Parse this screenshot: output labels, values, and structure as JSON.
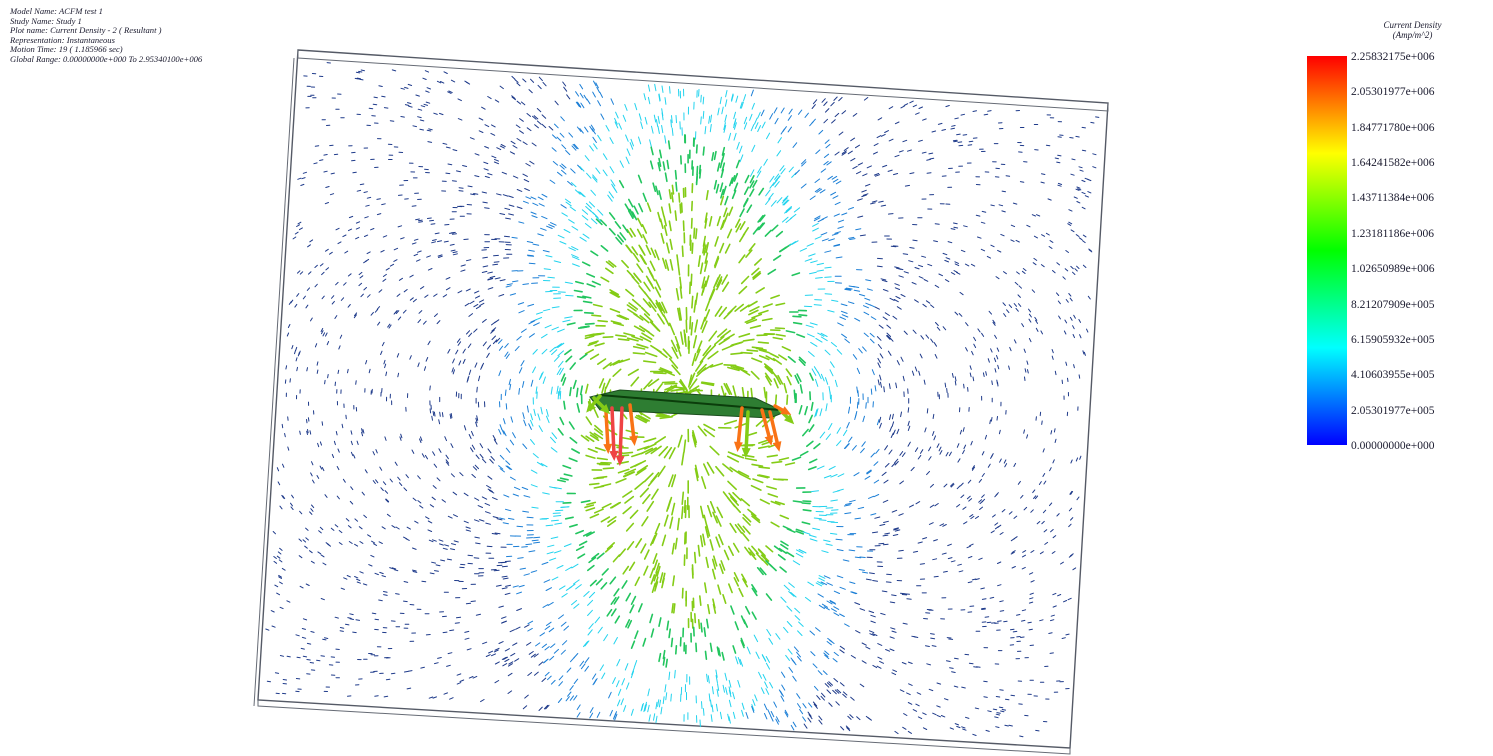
{
  "info": {
    "model_name": "Model Name: ACFM test 1",
    "study_name": "Study Name: Study 1",
    "plot_name": "Plot name: Current Density - 2 ( Resultant )",
    "representation": "Representation: Instantaneous",
    "motion_time": "Motion Time: 19 ( 1.185966 sec)",
    "global_range": "Global Range: 0.00000000e+000 To 2.95340100e+006"
  },
  "legend": {
    "title": "Current Density",
    "units": "(Amp/m^2)",
    "labels": [
      "2.25832175e+006",
      "2.05301977e+006",
      "1.84771780e+006",
      "1.64241582e+006",
      "1.43711384e+006",
      "1.23181186e+006",
      "1.02650989e+006",
      "8.21207909e+005",
      "6.15905932e+005",
      "4.10603955e+005",
      "2.05301977e+005",
      "0.00000000e+000"
    ],
    "colors": [
      "#0000ff",
      "#0080ff",
      "#00ffff",
      "#00ff80",
      "#00ff00",
      "#80ff00",
      "#ffff00",
      "#ff8000",
      "#ff0000"
    ]
  },
  "field": {
    "max_value": 2258321.75,
    "high_arrows": "red/orange arrows at both ends of coil",
    "colors": {
      "low": "#1e3a8a",
      "mid_low": "#1c7fd6",
      "mid": "#22d3ee",
      "mid_high": "#22c55e",
      "high": "#84cc16",
      "peak": "#f97316",
      "max": "#ef4444"
    }
  }
}
